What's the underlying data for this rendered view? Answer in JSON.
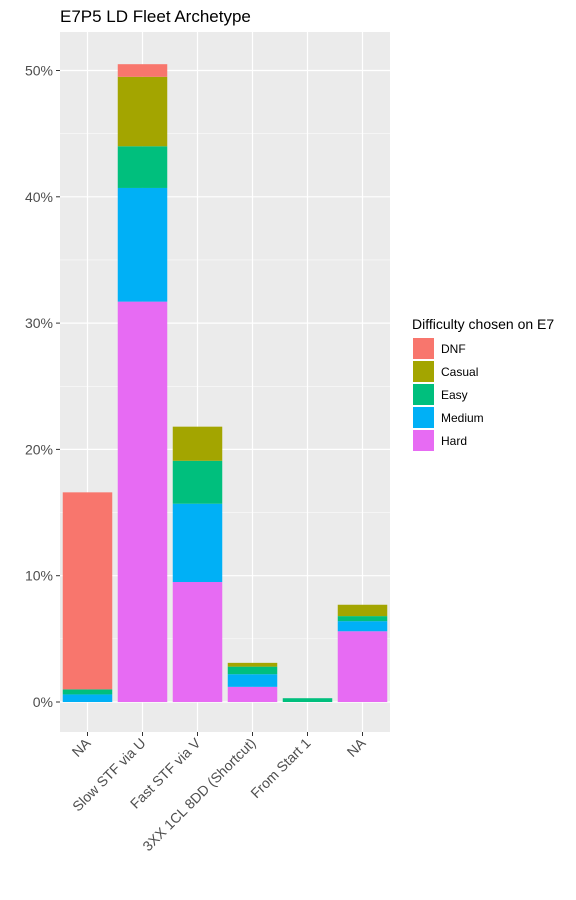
{
  "chart_data": {
    "type": "bar",
    "stacked": true,
    "title": "E7P5 LD Fleet Archetype",
    "xlabel": "",
    "ylabel": "",
    "categories": [
      "NA",
      "Slow STF via U",
      "Fast STF via V",
      "3XX 1CL 8DD (Shortcut)",
      "From Start 1",
      "NA"
    ],
    "ylim": [
      0,
      0.52
    ],
    "yticks": [
      0,
      0.1,
      0.2,
      0.3,
      0.4,
      0.5
    ],
    "ytick_labels": [
      "0%",
      "10%",
      "20%",
      "30%",
      "40%",
      "50%"
    ],
    "grid": true,
    "legend": {
      "title": "Difficulty chosen on E7",
      "position": "right"
    },
    "series": [
      {
        "name": "Hard",
        "color": "#E76BF3",
        "values": [
          0.0,
          0.317,
          0.095,
          0.012,
          0.0,
          0.056
        ]
      },
      {
        "name": "Medium",
        "color": "#00B0F6",
        "values": [
          0.006,
          0.09,
          0.062,
          0.01,
          0.0,
          0.008
        ]
      },
      {
        "name": "Easy",
        "color": "#00BF7D",
        "values": [
          0.004,
          0.033,
          0.034,
          0.006,
          0.003,
          0.004
        ]
      },
      {
        "name": "Casual",
        "color": "#A3A500",
        "values": [
          0.0,
          0.055,
          0.027,
          0.003,
          0.0,
          0.009
        ]
      },
      {
        "name": "DNF",
        "color": "#F8766D",
        "values": [
          0.156,
          0.01,
          0.0,
          0.0,
          0.0,
          0.0
        ]
      }
    ],
    "legend_order": [
      "DNF",
      "Casual",
      "Easy",
      "Medium",
      "Hard"
    ]
  }
}
